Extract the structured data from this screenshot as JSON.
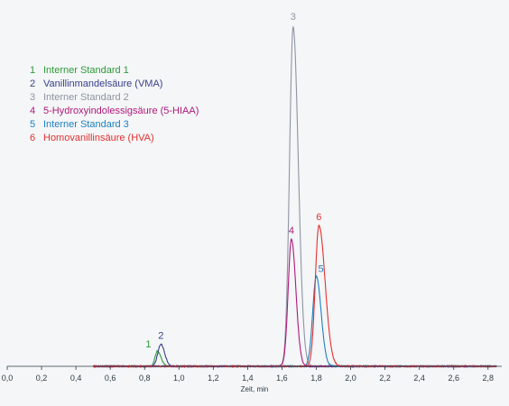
{
  "chart_data": {
    "type": "line",
    "title": "",
    "xlabel": "Zeit, min",
    "ylabel": "",
    "xlim": [
      0,
      2.88
    ],
    "ylim": [
      0,
      100
    ],
    "x_ticks": [
      "0,0",
      "0,2",
      "0,4",
      "0,6",
      "0,8",
      "1,0",
      "1,2",
      "1,4",
      "1,6",
      "1,8",
      "2,0",
      "2,2",
      "2,4",
      "2,6",
      "2,8"
    ],
    "legend_placement": "top-left",
    "grid": false,
    "series": [
      {
        "id": "1",
        "name": "Interner Standard 1",
        "color": "#2e9a3a",
        "peak_x": 0.875,
        "peak_y": 4.5,
        "sigma_left": 0.014,
        "sigma_right": 0.02
      },
      {
        "id": "2",
        "name": "Vanillinmandelsäure (VMA)",
        "color": "#3a3f8a",
        "peak_x": 0.895,
        "peak_y": 6.5,
        "sigma_left": 0.018,
        "sigma_right": 0.022
      },
      {
        "id": "3",
        "name": "Interner Standard 2",
        "color": "#8e95a3",
        "peak_x": 1.665,
        "peak_y": 100,
        "sigma_left": 0.021,
        "sigma_right": 0.03
      },
      {
        "id": "4",
        "name": "5-Hydroxyindolessigsäure (5-HIAA)",
        "color": "#b0197a",
        "peak_x": 1.655,
        "peak_y": 37.5,
        "sigma_left": 0.019,
        "sigma_right": 0.026
      },
      {
        "id": "5",
        "name": "Interner Standard 3",
        "color": "#1f7fc0",
        "peak_x": 1.8,
        "peak_y": 26.5,
        "sigma_left": 0.021,
        "sigma_right": 0.028
      },
      {
        "id": "6",
        "name": "Homovanillinsäure (HVA)",
        "color": "#e53030",
        "peak_x": 1.815,
        "peak_y": 41.5,
        "sigma_left": 0.021,
        "sigma_right": 0.036
      }
    ]
  }
}
